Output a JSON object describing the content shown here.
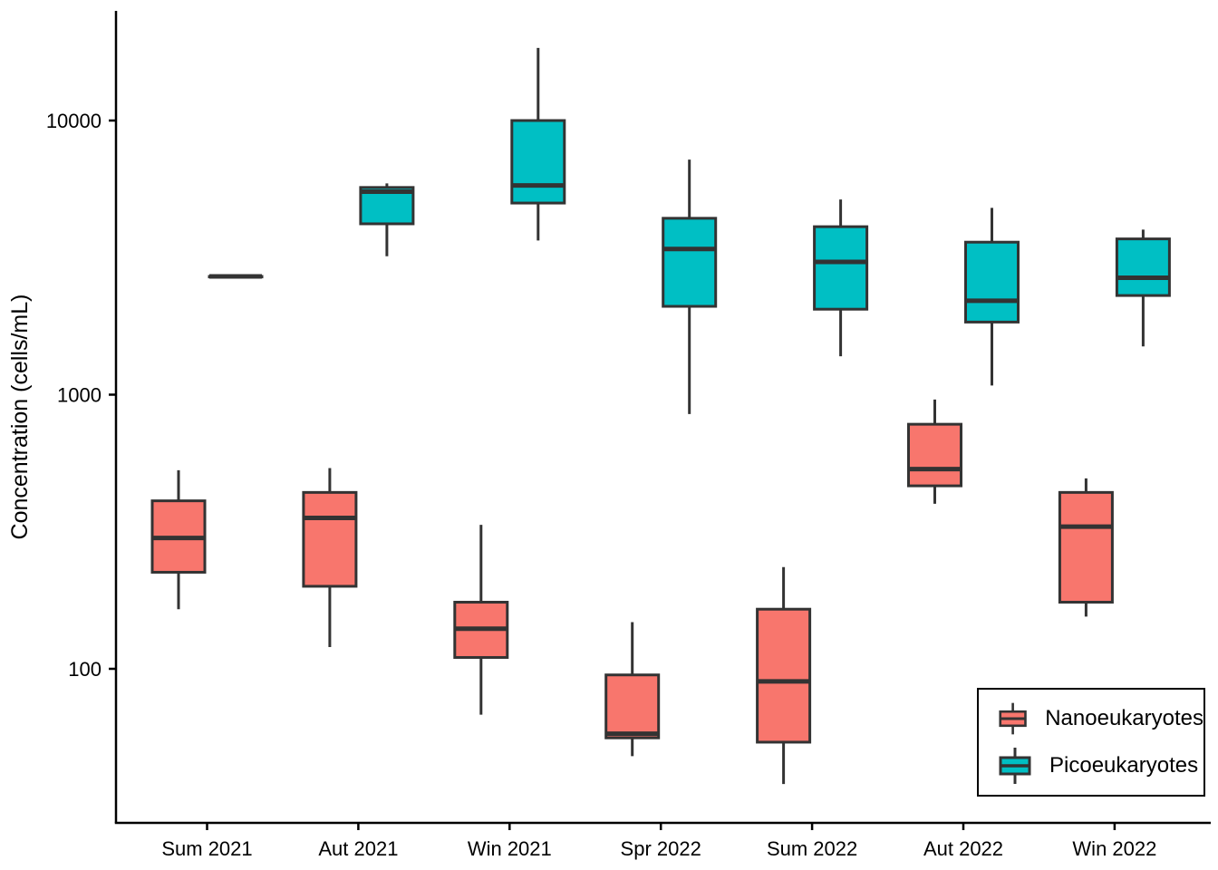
{
  "figure": {
    "ylabel": "Concentration (cells/mL)",
    "background_color": "#ffffff",
    "axis_color": "#000000",
    "box_outline_color": "#333333"
  },
  "legend": {
    "entries": [
      {
        "label": "Nanoeukaryotes",
        "color": "#F8766D",
        "glyph": "boxplot-icon"
      },
      {
        "label": "Picoeukaryotes",
        "color": "#00BFC4",
        "glyph": "boxplot-icon"
      }
    ]
  },
  "chart_data": {
    "type": "boxplot",
    "title": "",
    "xlabel": "",
    "ylabel": "Concentration (cells/mL)",
    "y_scale": "log10",
    "y_ticks": [
      100,
      1000,
      10000
    ],
    "ylim": [
      27,
      26000
    ],
    "grid": "off",
    "legend_position": "bottom-right-inside",
    "categories": [
      "Sum 2021",
      "Aut 2021",
      "Win 2021",
      "Spr 2022",
      "Sum 2022",
      "Aut 2022",
      "Win 2022"
    ],
    "series": [
      {
        "name": "Nanoeukaryotes",
        "color": "#F8766D",
        "boxes": [
          {
            "min": 165,
            "q1": 225,
            "median": 300,
            "q3": 410,
            "max": 530
          },
          {
            "min": 120,
            "q1": 200,
            "median": 355,
            "q3": 440,
            "max": 540
          },
          {
            "min": 68,
            "q1": 110,
            "median": 140,
            "q3": 175,
            "max": 335
          },
          {
            "min": 48,
            "q1": 56,
            "median": 58,
            "q3": 95,
            "max": 148
          },
          {
            "min": 38,
            "q1": 54,
            "median": 90,
            "q3": 165,
            "max": 235
          },
          {
            "min": 400,
            "q1": 465,
            "median": 535,
            "q3": 780,
            "max": 960
          },
          {
            "min": 155,
            "q1": 175,
            "median": 330,
            "q3": 440,
            "max": 495
          }
        ]
      },
      {
        "name": "Picoeukaryotes",
        "color": "#00BFC4",
        "boxes": [
          {
            "min": 2700,
            "q1": 2700,
            "median": 2700,
            "q3": 2700,
            "max": 2700
          },
          {
            "min": 3200,
            "q1": 4200,
            "median": 5500,
            "q3": 5700,
            "max": 5900
          },
          {
            "min": 3650,
            "q1": 5000,
            "median": 5800,
            "q3": 10000,
            "max": 18400
          },
          {
            "min": 850,
            "q1": 2100,
            "median": 3400,
            "q3": 4400,
            "max": 7200
          },
          {
            "min": 1380,
            "q1": 2050,
            "median": 3050,
            "q3": 4100,
            "max": 5150
          },
          {
            "min": 1080,
            "q1": 1840,
            "median": 2200,
            "q3": 3600,
            "max": 4800
          },
          {
            "min": 1500,
            "q1": 2300,
            "median": 2670,
            "q3": 3700,
            "max": 4000
          }
        ]
      }
    ]
  }
}
